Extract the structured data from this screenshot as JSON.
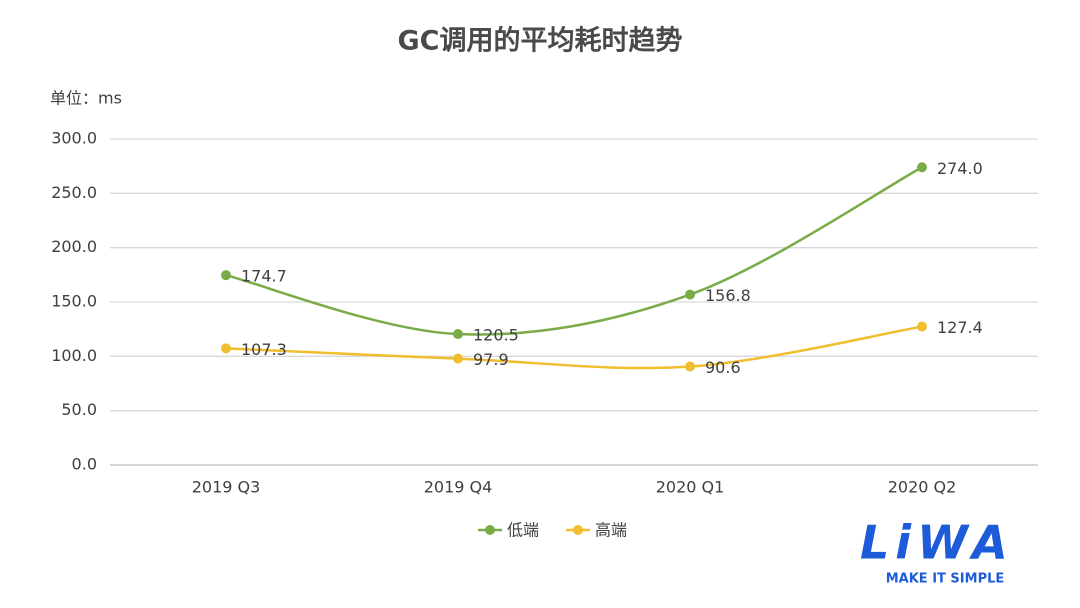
{
  "chart_data": {
    "type": "line",
    "title": "GC调用的平均耗时趋势",
    "unit_label": "单位：ms",
    "categories": [
      "2019 Q3",
      "2019 Q4",
      "2020 Q1",
      "2020 Q2"
    ],
    "series": [
      {
        "name": "低端",
        "color": "#7aab48",
        "values": [
          174.7,
          120.5,
          156.8,
          274.0
        ],
        "value_labels": [
          "174.7",
          "120.5",
          "156.8",
          "274.0"
        ]
      },
      {
        "name": "高端",
        "color": "#f0be2e",
        "values": [
          107.3,
          97.9,
          90.6,
          127.4
        ],
        "value_labels": [
          "107.3",
          "97.9",
          "90.6",
          "127.4"
        ]
      }
    ],
    "ylim": [
      0,
      300
    ],
    "yticks": [
      {
        "value": 0,
        "label": "0.0"
      },
      {
        "value": 50,
        "label": "50.0"
      },
      {
        "value": 100,
        "label": "100.0"
      },
      {
        "value": 150,
        "label": "150.0"
      },
      {
        "value": 200,
        "label": "200.0"
      },
      {
        "value": 250,
        "label": "250.0"
      },
      {
        "value": 300,
        "label": "300.0"
      }
    ],
    "grid": true,
    "smooth": true,
    "legend": "bottom",
    "logo": {
      "text": "LiWA",
      "tagline": "MAKE IT SIMPLE"
    }
  }
}
